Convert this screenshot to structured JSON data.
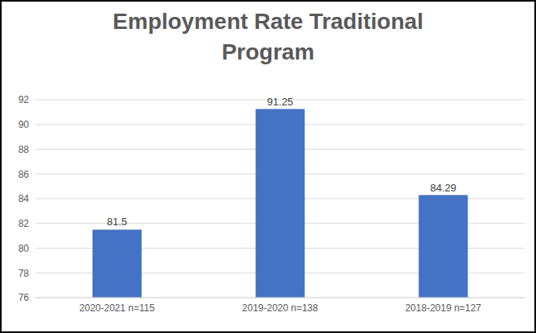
{
  "chart_data": {
    "type": "bar",
    "title": "Employment Rate Traditional Program",
    "categories": [
      "2020-2021 n=115",
      "2019-2020 n=138",
      "2018-2019 n=127"
    ],
    "values": [
      81.5,
      91.25,
      84.29
    ],
    "color": "#4472c4",
    "ylim": [
      76,
      92
    ],
    "yticks": [
      76,
      78,
      80,
      82,
      84,
      86,
      88,
      90,
      92
    ],
    "grid": true,
    "data_labels": true
  }
}
